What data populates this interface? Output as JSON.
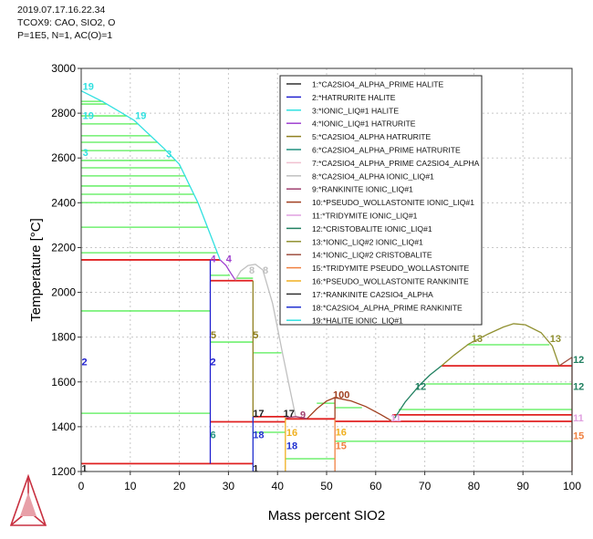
{
  "header": {
    "timestamp": "2019.07.17.16.22.34",
    "system": "TCOX9: CAO, SIO2, O",
    "conditions": "P=1E5, N=1, AC(O)=1"
  },
  "chart_data": {
    "type": "line",
    "title": "",
    "xlabel": "Mass percent SIO2",
    "ylabel": "Temperature [°C]",
    "xlim": [
      0,
      100
    ],
    "ylim": [
      1200,
      3000
    ],
    "xticks": [
      0,
      10,
      20,
      30,
      40,
      50,
      60,
      70,
      80,
      90,
      100
    ],
    "yticks": [
      1200,
      1400,
      1600,
      1800,
      2000,
      2200,
      2400,
      2600,
      2800,
      3000
    ],
    "grid": true,
    "legend_position": "top-right",
    "legend": [
      {
        "label": "1:*CA2SIO4_ALPHA_PRIME HALITE",
        "color": "#303030"
      },
      {
        "label": "2:*HATRURITE HALITE",
        "color": "#2020d0"
      },
      {
        "label": "3:*IONIC_LIQ#1 HALITE",
        "color": "#30e0e0"
      },
      {
        "label": "4:*IONIC_LIQ#1 HATRURITE",
        "color": "#a040d0"
      },
      {
        "label": "5:*CA2SIO4_ALPHA HATRURITE",
        "color": "#908020"
      },
      {
        "label": "6:*CA2SIO4_ALPHA_PRIME HATRURITE",
        "color": "#209080"
      },
      {
        "label": "7:*CA2SIO4_ALPHA_PRIME CA2SIO4_ALPHA",
        "color": "#f0c0d0"
      },
      {
        "label": "8:*CA2SIO4_ALPHA IONIC_LIQ#1",
        "color": "#c0c0c0"
      },
      {
        "label": "9:*RANKINITE IONIC_LIQ#1",
        "color": "#a04070"
      },
      {
        "label": "10:*PSEUDO_WOLLASTONITE IONIC_LIQ#1",
        "color": "#a04020"
      },
      {
        "label": "11:*TRIDYMITE IONIC_LIQ#1",
        "color": "#e0a0e0"
      },
      {
        "label": "12:*CRISTOBALITE IONIC_LIQ#1",
        "color": "#208060"
      },
      {
        "label": "13:*IONIC_LIQ#2 IONIC_LIQ#1",
        "color": "#909030"
      },
      {
        "label": "14:*IONIC_LIQ#2 CRISTOBALITE",
        "color": "#a05040"
      },
      {
        "label": "15:*TRIDYMITE PSEUDO_WOLLASTONITE",
        "color": "#f08040"
      },
      {
        "label": "16:*PSEUDO_WOLLASTONITE RANKINITE",
        "color": "#f0b020"
      },
      {
        "label": "17:*RANKINITE CA2SIO4_ALPHA",
        "color": "#303030"
      },
      {
        "label": "18:*CA2SIO4_ALPHA_PRIME RANKINITE",
        "color": "#2030d0"
      },
      {
        "label": "19:*HALITE IONIC_LIQ#1",
        "color": "#30e0e0"
      }
    ],
    "curves": [
      {
        "id": 19,
        "color": "#30e0e0",
        "points": [
          [
            0,
            2900
          ],
          [
            4.5,
            2850
          ],
          [
            10.8,
            2768
          ],
          [
            16.9,
            2642
          ],
          [
            20,
            2572
          ],
          [
            23.8,
            2400
          ],
          [
            25.8,
            2287
          ],
          [
            28.3,
            2145
          ]
        ]
      },
      {
        "id": 4,
        "color": "#a040d0",
        "points": [
          [
            28.3,
            2145
          ],
          [
            29.5,
            2120
          ],
          [
            30.5,
            2085
          ],
          [
            31.4,
            2055
          ]
        ]
      },
      {
        "id": 8,
        "color": "#c0c0c0",
        "points": [
          [
            31.4,
            2055
          ],
          [
            32.5,
            2095
          ],
          [
            34,
            2120
          ],
          [
            35.5,
            2125
          ],
          [
            37,
            2100
          ],
          [
            39,
            1950
          ],
          [
            41,
            1730
          ],
          [
            42.5,
            1570
          ],
          [
            43.7,
            1445
          ]
        ]
      },
      {
        "id": 9,
        "color": "#a04070",
        "points": [
          [
            41.6,
            1440
          ],
          [
            43.7,
            1445
          ],
          [
            46,
            1436
          ]
        ]
      },
      {
        "id": 10,
        "color": "#a04020",
        "points": [
          [
            46,
            1436
          ],
          [
            48,
            1480
          ],
          [
            50,
            1515
          ],
          [
            51.7,
            1530
          ],
          [
            55,
            1515
          ],
          [
            58,
            1490
          ],
          [
            61,
            1455
          ],
          [
            63.4,
            1424
          ]
        ]
      },
      {
        "id": 11,
        "color": "#e0a0e0",
        "points": [
          [
            63.4,
            1424
          ],
          [
            64.5,
            1455
          ]
        ]
      },
      {
        "id": 12,
        "color": "#208060",
        "points": [
          [
            63.9,
            1440
          ],
          [
            66,
            1510
          ],
          [
            69,
            1587
          ],
          [
            71,
            1630
          ],
          [
            73.4,
            1672
          ]
        ]
      },
      {
        "id": 13,
        "color": "#909030",
        "points": [
          [
            73.4,
            1672
          ],
          [
            76,
            1720
          ],
          [
            79,
            1770
          ],
          [
            83,
            1815
          ],
          [
            86,
            1845
          ],
          [
            88.1,
            1860
          ],
          [
            90.5,
            1855
          ],
          [
            93.7,
            1820
          ],
          [
            96,
            1760
          ],
          [
            97.4,
            1672
          ]
        ]
      },
      {
        "id": 14,
        "color": "#a05040",
        "points": [
          [
            97.4,
            1672
          ],
          [
            100,
            1710
          ]
        ]
      },
      {
        "id": 2,
        "color": "#2020d0",
        "points": [
          [
            26.3,
            1235
          ],
          [
            26.3,
            2145
          ]
        ]
      },
      {
        "id": 5,
        "color": "#908020",
        "points": [
          [
            35,
            1445
          ],
          [
            35,
            2052
          ]
        ]
      },
      {
        "id": 18,
        "color": "#2030d0",
        "points": [
          [
            35,
            1200
          ],
          [
            35,
            1445
          ]
        ]
      },
      {
        "id": 16,
        "color": "#f0b020",
        "points": [
          [
            41.6,
            1200
          ],
          [
            41.6,
            1440
          ]
        ]
      },
      {
        "id": 10,
        "color": "#a04020",
        "points": [
          [
            51.7,
            1435
          ],
          [
            51.7,
            1530
          ]
        ]
      },
      {
        "id": 15,
        "color": "#f08040",
        "points": [
          [
            51.7,
            1200
          ],
          [
            51.7,
            1435
          ]
        ]
      },
      {
        "id": 14,
        "color": "#a05040",
        "points": [
          [
            100,
            1200
          ],
          [
            100,
            1710
          ]
        ]
      }
    ],
    "invariant_lines": [
      [
        [
          0,
          2145
        ],
        [
          28.3,
          2145
        ]
      ],
      [
        [
          26.3,
          2052
        ],
        [
          35,
          2052
        ]
      ],
      [
        [
          26.3,
          1422
        ],
        [
          41.6,
          1422
        ]
      ],
      [
        [
          35,
          1445
        ],
        [
          41.6,
          1445
        ]
      ],
      [
        [
          41.6,
          1435
        ],
        [
          51.7,
          1435
        ]
      ],
      [
        [
          51.7,
          1424
        ],
        [
          100,
          1424
        ]
      ],
      [
        [
          63.4,
          1453
        ],
        [
          100,
          1453
        ]
      ],
      [
        [
          73.4,
          1672
        ],
        [
          100,
          1672
        ]
      ],
      [
        [
          0,
          1235
        ],
        [
          35,
          1235
        ]
      ]
    ],
    "tie_lines": [
      [
        0,
        4.5,
        2853
      ],
      [
        0,
        5.2,
        2841
      ],
      [
        0,
        9.3,
        2788
      ],
      [
        0,
        11.6,
        2752
      ],
      [
        0,
        14.2,
        2699
      ],
      [
        0,
        15.6,
        2670
      ],
      [
        0,
        17.3,
        2633
      ],
      [
        0,
        19.2,
        2589
      ],
      [
        0,
        20.4,
        2556
      ],
      [
        0,
        21.3,
        2520
      ],
      [
        0,
        22.1,
        2475
      ],
      [
        0,
        23.0,
        2438
      ],
      [
        0,
        23.8,
        2401
      ],
      [
        0,
        25.8,
        2291
      ],
      [
        0,
        27.8,
        2177
      ],
      [
        0,
        26.3,
        1917
      ],
      [
        0,
        26.3,
        1460
      ],
      [
        26.3,
        30.3,
        2076
      ],
      [
        31.5,
        35,
        2063
      ],
      [
        26.3,
        35,
        1778
      ],
      [
        35,
        40.8,
        1730
      ],
      [
        35,
        41.6,
        1375
      ],
      [
        41.6,
        51.7,
        1257
      ],
      [
        48,
        51.7,
        1505
      ],
      [
        51.7,
        57.2,
        1485
      ],
      [
        51.7,
        100,
        1335
      ],
      [
        78.6,
        95.4,
        1766
      ],
      [
        70.2,
        100,
        1591
      ],
      [
        64.7,
        100,
        1477
      ]
    ],
    "labels": [
      {
        "text": "19",
        "x": 0.3,
        "y": 2920,
        "color": "#30e0e0"
      },
      {
        "text": "19",
        "x": 0.3,
        "y": 2790,
        "color": "#30e0e0"
      },
      {
        "text": "19",
        "x": 11,
        "y": 2790,
        "color": "#30e0e0"
      },
      {
        "text": "3",
        "x": 0.3,
        "y": 2625,
        "color": "#30e0e0"
      },
      {
        "text": "3",
        "x": 17.3,
        "y": 2620,
        "color": "#30e0e0"
      },
      {
        "text": "4",
        "x": 26.3,
        "y": 2150,
        "color": "#a040d0"
      },
      {
        "text": "4",
        "x": 29.5,
        "y": 2150,
        "color": "#a040d0"
      },
      {
        "text": "8",
        "x": 34.2,
        "y": 2100,
        "color": "#c0c0c0"
      },
      {
        "text": "8",
        "x": 37,
        "y": 2100,
        "color": "#c0c0c0"
      },
      {
        "text": "5",
        "x": 26.4,
        "y": 1810,
        "color": "#908020"
      },
      {
        "text": "5",
        "x": 35,
        "y": 1810,
        "color": "#908020"
      },
      {
        "text": "2",
        "x": 0.1,
        "y": 1690,
        "color": "#2020d0"
      },
      {
        "text": "2",
        "x": 26.3,
        "y": 1690,
        "color": "#2020d0"
      },
      {
        "text": "6",
        "x": 26.3,
        "y": 1365,
        "color": "#209080"
      },
      {
        "text": "18",
        "x": 35,
        "y": 1365,
        "color": "#2030d0"
      },
      {
        "text": "16",
        "x": 41.8,
        "y": 1375,
        "color": "#f0b020"
      },
      {
        "text": "18",
        "x": 41.8,
        "y": 1365,
        "color": "#2030d0"
      },
      {
        "text": "17",
        "x": 35,
        "y": 1460,
        "color": "#202020"
      },
      {
        "text": "17",
        "x": 41.2,
        "y": 1460,
        "color": "#202020"
      },
      {
        "text": "9",
        "x": 44.6,
        "y": 1455,
        "color": "#a04070"
      },
      {
        "text": "100",
        "x": 51.3,
        "y": 1545,
        "color": "#a04020"
      },
      {
        "text": "16",
        "x": 51.8,
        "y": 1378,
        "color": "#f0b020"
      },
      {
        "text": "15",
        "x": 51.8,
        "y": 1365,
        "color": "#f08040"
      },
      {
        "text": "1",
        "x": 0.1,
        "y": 1215,
        "color": "#202020"
      },
      {
        "text": "1",
        "x": 35,
        "y": 1215,
        "color": "#202020"
      },
      {
        "text": "11",
        "x": 63,
        "y": 1440,
        "color": "#e0a0e0"
      },
      {
        "text": "13",
        "x": 79.5,
        "y": 1795,
        "color": "#909030"
      },
      {
        "text": "13",
        "x": 95.5,
        "y": 1795,
        "color": "#909030"
      },
      {
        "text": "12",
        "x": 68,
        "y": 1580,
        "color": "#208060"
      },
      {
        "text": "12",
        "x": 100.2,
        "y": 1580,
        "color": "#208060"
      },
      {
        "text": "12",
        "x": 100.2,
        "y": 1700,
        "color": "#208060"
      },
      {
        "text": "11",
        "x": 100.2,
        "y": 1440,
        "color": "#e0a0e0"
      },
      {
        "text": "15",
        "x": 100.2,
        "y": 1360,
        "color": "#f08040"
      }
    ]
  },
  "colors": {
    "invariant": "#e02020",
    "tie_line": "#55ee55",
    "grid": "#c8c8c8",
    "logo": "#c83040"
  }
}
